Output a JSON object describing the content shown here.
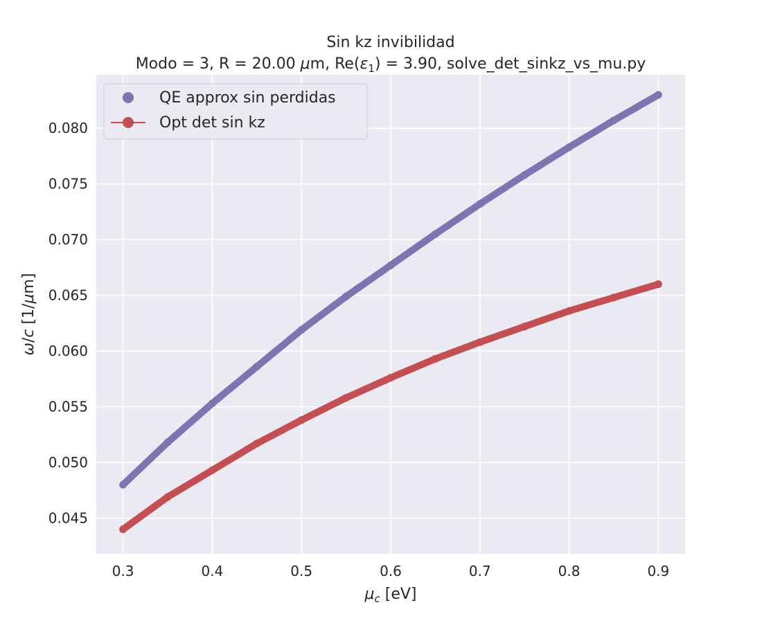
{
  "chart_data": {
    "type": "line",
    "title": "Sin kz invibilidad",
    "subtitle": {
      "prefix": "Modo = 3, R = 20.00 ",
      "mu_symbol": "μ",
      "after_mu": "m, Re(",
      "eps_symbol": "ε",
      "eps_sub": "1",
      "suffix": ") = 3.90, solve_det_sinkz_vs_mu.py"
    },
    "xlabel": {
      "symbol": "μ",
      "sub": "c",
      "unit": " [eV]"
    },
    "ylabel": {
      "omega": "ω",
      "slash": "/",
      "c": "c",
      "unit_open": " [1/",
      "mu": "μ",
      "unit_close": "m]"
    },
    "xlim": [
      0.27,
      0.93
    ],
    "ylim": [
      0.0418,
      0.0848
    ],
    "xticks": [
      0.3,
      0.4,
      0.5,
      0.6,
      0.7,
      0.8,
      0.9
    ],
    "yticks": [
      0.045,
      0.05,
      0.055,
      0.06,
      0.065,
      0.07,
      0.075,
      0.08
    ],
    "xtick_labels": [
      "0.3",
      "0.4",
      "0.5",
      "0.6",
      "0.7",
      "0.8",
      "0.9"
    ],
    "ytick_labels": [
      "0.045",
      "0.050",
      "0.055",
      "0.060",
      "0.065",
      "0.070",
      "0.075",
      "0.080"
    ],
    "grid": true,
    "legend_position": "top-left",
    "background": "#eaeaf2",
    "series": [
      {
        "name": "QE approx sin perdidas",
        "color": "#8172b2",
        "marker": "dot",
        "x": [
          0.3,
          0.35,
          0.4,
          0.45,
          0.5,
          0.55,
          0.6,
          0.65,
          0.7,
          0.75,
          0.8,
          0.85,
          0.9
        ],
        "y": [
          0.048,
          0.0518,
          0.0553,
          0.0586,
          0.0619,
          0.0649,
          0.0677,
          0.0705,
          0.0732,
          0.0758,
          0.0783,
          0.0807,
          0.083
        ]
      },
      {
        "name": "Opt det sin kz",
        "color": "#c44e52",
        "marker": "dot-line",
        "x": [
          0.3,
          0.35,
          0.4,
          0.45,
          0.5,
          0.55,
          0.6,
          0.65,
          0.7,
          0.75,
          0.8,
          0.85,
          0.9
        ],
        "y": [
          0.044,
          0.0469,
          0.0493,
          0.0517,
          0.0538,
          0.0558,
          0.0576,
          0.0593,
          0.0608,
          0.0622,
          0.0636,
          0.0648,
          0.066
        ]
      }
    ]
  }
}
